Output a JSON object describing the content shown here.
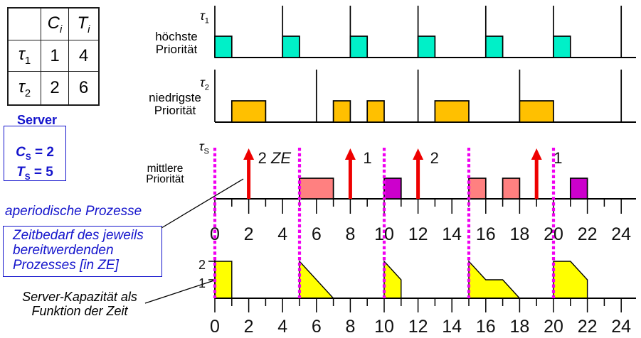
{
  "params_table": {
    "col_headers": [
      {
        "text": ""
      },
      {
        "main": "C",
        "sub": "i"
      },
      {
        "main": "T",
        "sub": "i"
      }
    ],
    "rows": [
      {
        "name": {
          "main": "τ",
          "sub": "1"
        },
        "C": "1",
        "T": "4"
      },
      {
        "name": {
          "main": "τ",
          "sub": "2"
        },
        "C": "2",
        "T": "6"
      }
    ]
  },
  "server_panel": {
    "title": "Server",
    "lines": [
      {
        "main": "C",
        "sub": "S",
        "rest": " = 2"
      },
      {
        "main": "T",
        "sub": "S",
        "rest": " = 5"
      }
    ]
  },
  "annotations": {
    "aperiodic": "aperiodische Prozesse",
    "callout_lines": [
      "Zeitbedarf des jeweils",
      "bereitwerdenden",
      "Prozesses [in ZE]"
    ],
    "capacity_lines": [
      "Server-Kapazität als",
      "Funktion der Zeit"
    ]
  },
  "row_labels": {
    "tau1": {
      "main": "τ",
      "sub": "1"
    },
    "tau1_prio": [
      "höchste",
      "Priorität"
    ],
    "tau2": {
      "main": "τ",
      "sub": "2"
    },
    "tau2_prio": [
      "niedrigste",
      "Priorität"
    ],
    "tauS": {
      "main": "τ",
      "sub": "S"
    },
    "tauS_prio": [
      "mittlere",
      "Priorität"
    ]
  },
  "colors": {
    "task1": "#00F0C8",
    "task2": "#FFC000",
    "server_exec": "#FF8080",
    "server_exec_alt": "#CC00CC",
    "request_arrow": "#EE0000",
    "replenish_line": "#F000F0",
    "capacity_fill": "#FFFF00",
    "accent_blue": "#1414CC"
  },
  "diagram": {
    "time_axis": {
      "min": 0,
      "max": 24,
      "major_step": 2,
      "numbers": [
        "0",
        "2",
        "4",
        "6",
        "8",
        "10",
        "12",
        "14",
        "16",
        "18",
        "20",
        "22",
        "24"
      ]
    },
    "task1": {
      "period": 4,
      "wcet": 1,
      "releases": [
        0,
        4,
        8,
        12,
        16,
        20,
        24
      ],
      "executions": [
        [
          0,
          1
        ],
        [
          4,
          5
        ],
        [
          8,
          9
        ],
        [
          12,
          13
        ],
        [
          16,
          17
        ],
        [
          20,
          21
        ]
      ]
    },
    "task2": {
      "period": 6,
      "wcet": 2,
      "releases": [
        0,
        6,
        12,
        18,
        24
      ],
      "executions": [
        [
          1,
          3
        ],
        [
          7,
          8
        ],
        [
          9,
          10
        ],
        [
          13,
          15
        ],
        [
          18,
          20
        ]
      ]
    },
    "server": {
      "period": 5,
      "capacity": 2,
      "replenishments": [
        0,
        5,
        10,
        15,
        20
      ],
      "requests": [
        {
          "t": 2,
          "amount": "2",
          "unit": " ZE",
          "dx": 13
        },
        {
          "t": 8,
          "amount": "1",
          "dx": 18
        },
        {
          "t": 12,
          "amount": "2",
          "dx": 17
        },
        {
          "t": 19,
          "amount": "1",
          "dx": 24
        }
      ],
      "executions": [
        {
          "from": 5,
          "to": 7,
          "alt": false
        },
        {
          "from": 10,
          "to": 11,
          "alt": true
        },
        {
          "from": 15,
          "to": 16,
          "alt": false
        },
        {
          "from": 17,
          "to": 18,
          "alt": false
        },
        {
          "from": 21,
          "to": 22,
          "alt": true
        }
      ]
    },
    "capacity": {
      "y_ticks": [
        {
          "label": "2",
          "value": 2
        },
        {
          "label": "1",
          "value": 1
        }
      ],
      "shapes": [
        [
          [
            0,
            2
          ],
          [
            1,
            2
          ],
          [
            1,
            0
          ]
        ],
        [
          [
            5,
            2
          ],
          [
            7,
            0
          ]
        ],
        [
          [
            10,
            2
          ],
          [
            11,
            1
          ],
          [
            11,
            0
          ]
        ],
        [
          [
            15,
            2
          ],
          [
            16,
            1
          ],
          [
            17,
            1
          ],
          [
            18,
            0
          ]
        ],
        [
          [
            20,
            2
          ],
          [
            21,
            2
          ],
          [
            22,
            1
          ],
          [
            22,
            0
          ]
        ]
      ]
    }
  }
}
